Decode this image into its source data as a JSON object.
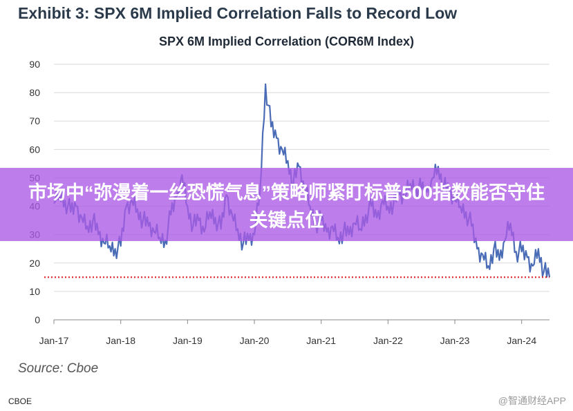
{
  "header": {
    "exhibit_title": "Exhibit 3: SPX 6M Implied Correlation Falls to Record Low"
  },
  "banner": {
    "headline": "市场中“弥漫着一丝恐慌气息”策略师紧盯标普500指数能否守住关键点位"
  },
  "source": "Source: Cboe",
  "footer": {
    "left": "CBOE",
    "right": "@智通财经APP"
  },
  "colors": {
    "series": "#4a6cb6",
    "reference": "#e02020",
    "banner": "#aa5ae6"
  },
  "chart_data": {
    "type": "line",
    "title": "SPX 6M Implied Correlation (COR6M Index)",
    "xlabel": "",
    "ylabel": "",
    "ylim": [
      0,
      90
    ],
    "xlim": [
      "2017-01",
      "2024-06"
    ],
    "grid": true,
    "legend": "none",
    "yticks": [
      "0",
      "10",
      "20",
      "30",
      "40",
      "50",
      "60",
      "70",
      "80",
      "90"
    ],
    "xticks": [
      {
        "date": "2017-01",
        "label": "Jan-17"
      },
      {
        "date": "2018-01",
        "label": "Jan-18"
      },
      {
        "date": "2019-01",
        "label": "Jan-19"
      },
      {
        "date": "2020-01",
        "label": "Jan-20"
      },
      {
        "date": "2021-01",
        "label": "Jan-21"
      },
      {
        "date": "2022-01",
        "label": "Jan-22"
      },
      {
        "date": "2023-01",
        "label": "Jan-23"
      },
      {
        "date": "2024-01",
        "label": "Jan-24"
      }
    ],
    "reference_line": {
      "y": 15,
      "style": "dotted"
    },
    "series": [
      {
        "points": [
          [
            "2017-01",
            41
          ],
          [
            "2017-02",
            44
          ],
          [
            "2017-03",
            42
          ],
          [
            "2017-04",
            38
          ],
          [
            "2017-05",
            40
          ],
          [
            "2017-06",
            36
          ],
          [
            "2017-07",
            33
          ],
          [
            "2017-08",
            35
          ],
          [
            "2017-09",
            30
          ],
          [
            "2017-10",
            27
          ],
          [
            "2017-11",
            26
          ],
          [
            "2017-12",
            25
          ],
          [
            "2018-01",
            26
          ],
          [
            "2018-02",
            40
          ],
          [
            "2018-03",
            42
          ],
          [
            "2018-04",
            39
          ],
          [
            "2018-05",
            35
          ],
          [
            "2018-06",
            33
          ],
          [
            "2018-07",
            31
          ],
          [
            "2018-08",
            29
          ],
          [
            "2018-09",
            28
          ],
          [
            "2018-10",
            37
          ],
          [
            "2018-11",
            43
          ],
          [
            "2018-12",
            51
          ],
          [
            "2019-01",
            40
          ],
          [
            "2019-02",
            33
          ],
          [
            "2019-03",
            35
          ],
          [
            "2019-04",
            31
          ],
          [
            "2019-05",
            38
          ],
          [
            "2019-06",
            36
          ],
          [
            "2019-07",
            32
          ],
          [
            "2019-08",
            44
          ],
          [
            "2019-09",
            37
          ],
          [
            "2019-10",
            32
          ],
          [
            "2019-11",
            27
          ],
          [
            "2019-12",
            28
          ],
          [
            "2020-01",
            30
          ],
          [
            "2020-02",
            45
          ],
          [
            "2020-03",
            83
          ],
          [
            "2020-04",
            68
          ],
          [
            "2020-05",
            64
          ],
          [
            "2020-06",
            60
          ],
          [
            "2020-07",
            56
          ],
          [
            "2020-08",
            48
          ],
          [
            "2020-09",
            54
          ],
          [
            "2020-10",
            46
          ],
          [
            "2020-11",
            40
          ],
          [
            "2020-12",
            34
          ],
          [
            "2021-01",
            35
          ],
          [
            "2021-02",
            31
          ],
          [
            "2021-03",
            33
          ],
          [
            "2021-04",
            29
          ],
          [
            "2021-05",
            31
          ],
          [
            "2021-06",
            30
          ],
          [
            "2021-07",
            34
          ],
          [
            "2021-08",
            32
          ],
          [
            "2021-09",
            37
          ],
          [
            "2021-10",
            40
          ],
          [
            "2021-11",
            36
          ],
          [
            "2021-12",
            42
          ],
          [
            "2022-01",
            40
          ],
          [
            "2022-02",
            41
          ],
          [
            "2022-03",
            44
          ],
          [
            "2022-04",
            43
          ],
          [
            "2022-05",
            48
          ],
          [
            "2022-06",
            47
          ],
          [
            "2022-07",
            46
          ],
          [
            "2022-08",
            45
          ],
          [
            "2022-09",
            50
          ],
          [
            "2022-10",
            54
          ],
          [
            "2022-11",
            47
          ],
          [
            "2022-12",
            45
          ],
          [
            "2023-01",
            42
          ],
          [
            "2023-02",
            40
          ],
          [
            "2023-03",
            38
          ],
          [
            "2023-04",
            33
          ],
          [
            "2023-05",
            25
          ],
          [
            "2023-06",
            23
          ],
          [
            "2023-07",
            19
          ],
          [
            "2023-08",
            25
          ],
          [
            "2023-09",
            21
          ],
          [
            "2023-10",
            28
          ],
          [
            "2023-11",
            34
          ],
          [
            "2023-12",
            24
          ],
          [
            "2024-01",
            24
          ],
          [
            "2024-02",
            22
          ],
          [
            "2024-03",
            19
          ],
          [
            "2024-04",
            25
          ],
          [
            "2024-05",
            17
          ],
          [
            "2024-06",
            15
          ]
        ]
      }
    ]
  }
}
